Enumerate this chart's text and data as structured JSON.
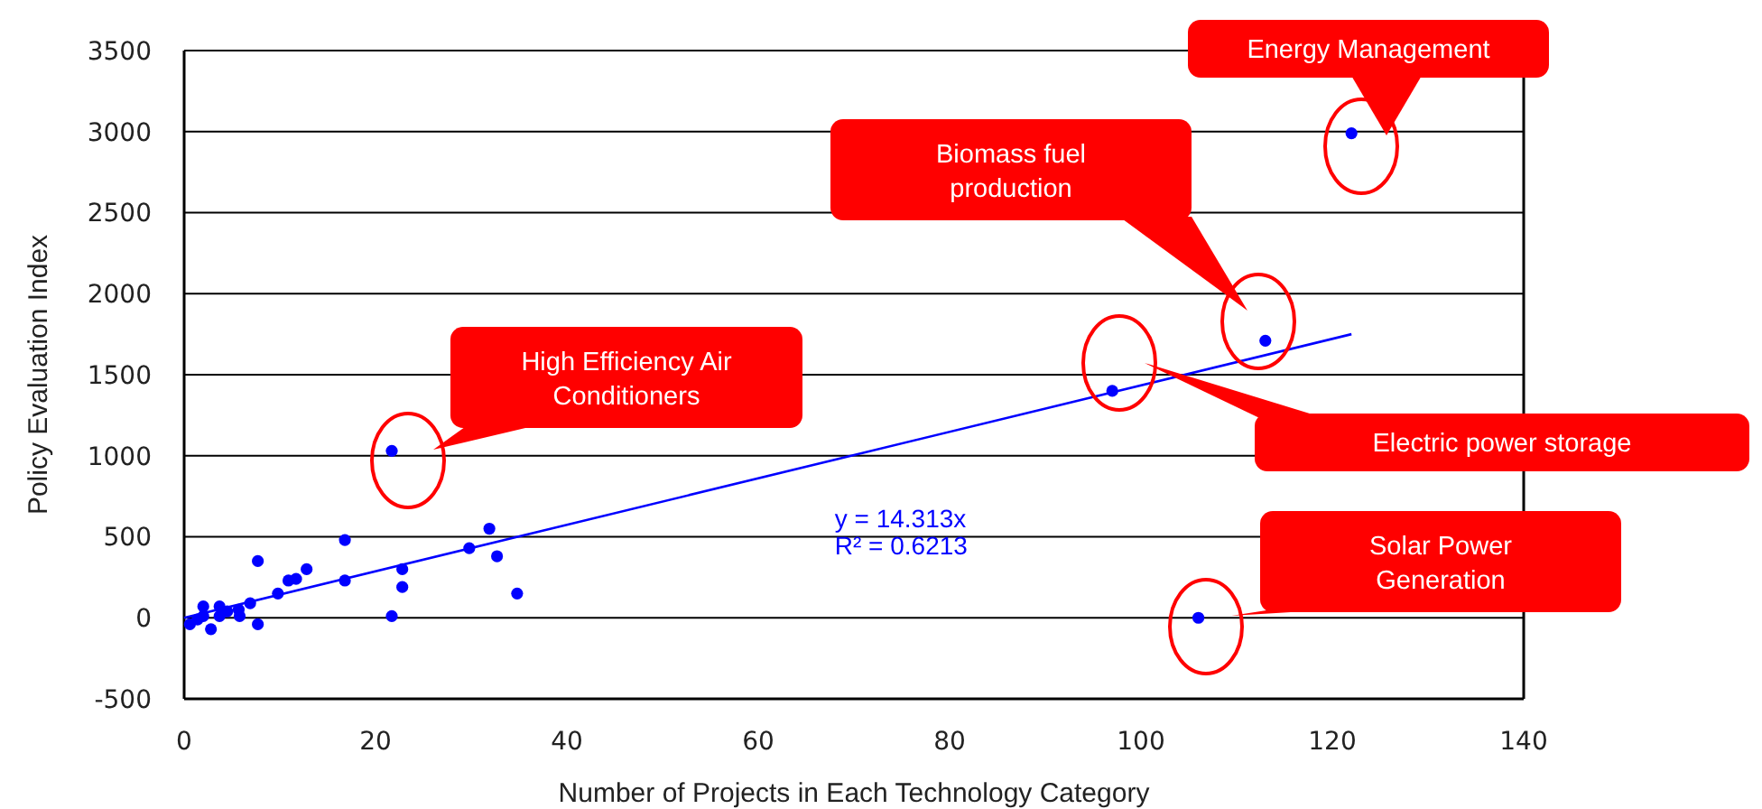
{
  "chart_data": {
    "type": "scatter",
    "xlabel": "Number of Projects in Each Technology Category",
    "ylabel": "Policy Evaluation Index",
    "xlim": [
      0,
      140
    ],
    "xticks": [
      0,
      20,
      40,
      60,
      80,
      100,
      120,
      140
    ],
    "ylim": [
      -500,
      3500
    ],
    "yticks": [
      -500,
      0,
      500,
      1000,
      1500,
      2000,
      2500,
      3000,
      3500
    ],
    "grid": "y",
    "marker": "circle",
    "series": [
      {
        "color": "#0000ff",
        "x": [
          0.6,
          1.4,
          2,
          2,
          2.8,
          3.7,
          3.7,
          4.5,
          5.7,
          5.8,
          6.9,
          7.7,
          7.7,
          9.8,
          10.9,
          11.7,
          12.8,
          16.8,
          16.8,
          21.7,
          21.7,
          22.8,
          22.8,
          29.8,
          31.9,
          32.7,
          34.8,
          97,
          106,
          113,
          122
        ],
        "values": [
          -40,
          -10,
          70,
          10,
          -70,
          70,
          10,
          40,
          50,
          10,
          90,
          -40,
          350,
          150,
          230,
          240,
          300,
          480,
          230,
          1030,
          10,
          300,
          190,
          430,
          550,
          380,
          150,
          1400,
          0,
          1710,
          2990
        ]
      },
      {
        "type": "line",
        "color": "#0000ff",
        "x": [
          0,
          122
        ],
        "values": [
          0,
          1750
        ],
        "marker": "none",
        "line_style": "solid"
      }
    ],
    "annotations": [
      "High Efficiency Air Conditioners",
      "Biomass fuel production",
      "Energy Management",
      "Electric power storage",
      "Solar Power Generation",
      "y = 14.313x",
      "R² = 0.6213"
    ]
  }
}
